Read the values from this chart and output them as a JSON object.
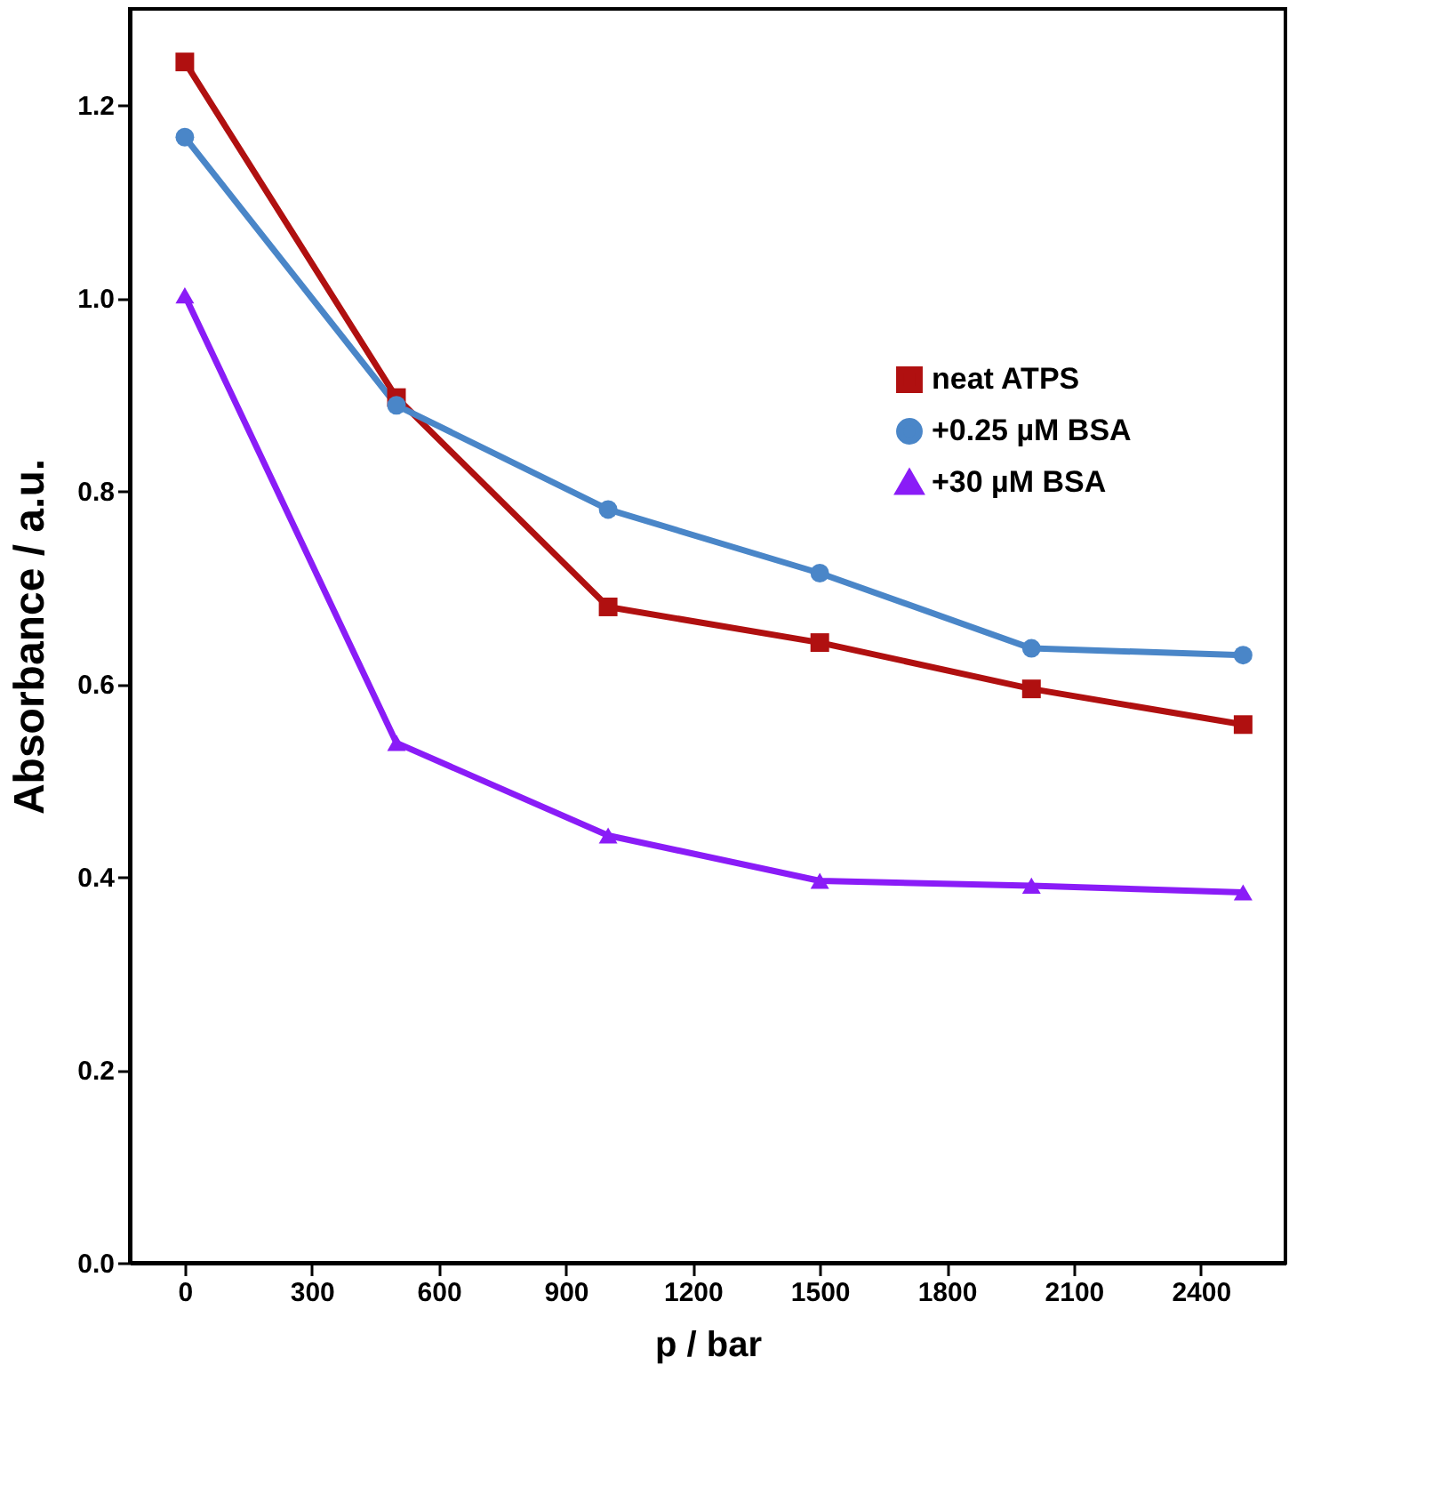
{
  "chart_data": {
    "type": "line",
    "xlabel": "p / bar",
    "ylabel": "Absorbance / a.u.",
    "x": [
      0,
      500,
      1000,
      1500,
      2000,
      2500
    ],
    "series": [
      {
        "name": "neat ATPS",
        "color": "#b01010",
        "marker": "square",
        "values": [
          1.245,
          0.897,
          0.68,
          0.643,
          0.595,
          0.558
        ]
      },
      {
        "name": "+0.25 µM BSA",
        "color": "#4a86c8",
        "marker": "circle",
        "values": [
          1.167,
          0.889,
          0.781,
          0.715,
          0.637,
          0.63
        ]
      },
      {
        "name": "+30 µM BSA",
        "color": "#8a1cf7",
        "marker": "triangle",
        "values": [
          1.003,
          0.539,
          0.443,
          0.396,
          0.391,
          0.384
        ]
      }
    ],
    "xlim": [
      -130,
      2600
    ],
    "xticks": [
      0,
      300,
      600,
      900,
      1200,
      1500,
      1800,
      2100,
      2400
    ],
    "ylim": [
      0,
      1.3
    ],
    "yticks": [
      {
        "value": 0,
        "label": "0.0"
      },
      0.2,
      0.4,
      0.6,
      0.8,
      {
        "value": 1,
        "label": "1.0"
      },
      1.2
    ],
    "grid": false,
    "legend": "right",
    "line_style": "solid"
  }
}
